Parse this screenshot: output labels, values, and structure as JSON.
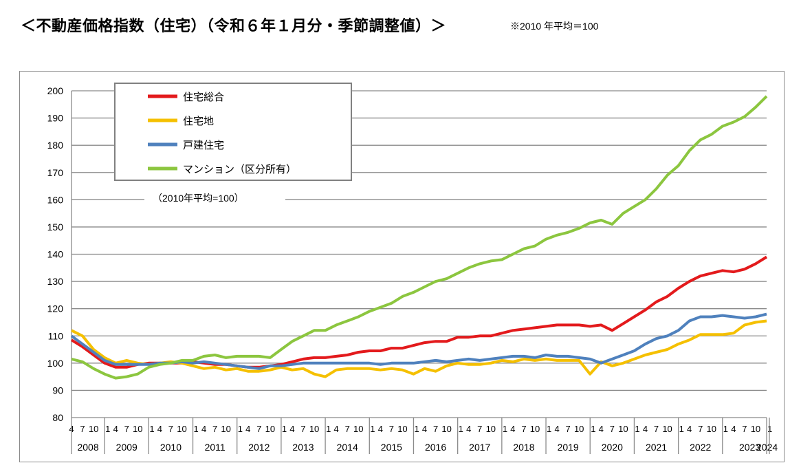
{
  "title": "＜不動産価格指数（住宅）（令和６年１月分・季節調整値）＞",
  "note": "※2010 年平均＝100",
  "chart_data": {
    "type": "line",
    "title": "",
    "xlabel": "",
    "ylabel": "",
    "annotation": "（2010年平均=100）",
    "ylim": [
      80,
      200
    ],
    "yticks": [
      80,
      90,
      100,
      110,
      120,
      130,
      140,
      150,
      160,
      170,
      180,
      190,
      200
    ],
    "grid": true,
    "legend_position": "top-left",
    "x_start": "2008-04",
    "x_end": "2024-01",
    "x_frequency_of_values": "quarterly (Jan/Apr/Jul/Oct)",
    "month_tick_labels": [
      "1",
      "4",
      "7",
      "10"
    ],
    "years": [
      "2008",
      "2009",
      "2010",
      "2011",
      "2012",
      "2013",
      "2014",
      "2015",
      "2016",
      "2017",
      "2018",
      "2019",
      "2020",
      "2021",
      "2022",
      "2023",
      "2024"
    ],
    "series": [
      {
        "name": "住宅総合",
        "color": "#e31a1c",
        "values": [
          108.5,
          106,
          103,
          100,
          98.5,
          98.5,
          99.5,
          100,
          100,
          100,
          100,
          100.5,
          100,
          99.5,
          99.5,
          99,
          98.5,
          98.5,
          99,
          99.5,
          100.5,
          101.5,
          102,
          102,
          102.5,
          103,
          104,
          104.5,
          104.5,
          105.5,
          105.5,
          106.5,
          107.5,
          108,
          108,
          109.5,
          109.5,
          110,
          110,
          111,
          112,
          112.5,
          113,
          113.5,
          114,
          114,
          114,
          113.5,
          114,
          112,
          114.5,
          117,
          119.5,
          122.5,
          124.5,
          127.5,
          130,
          132,
          133,
          134,
          133.5,
          134.5,
          136.5,
          139
        ]
      },
      {
        "name": "住宅地",
        "color": "#f5c000",
        "values": [
          112,
          110,
          105,
          102,
          100,
          101,
          100,
          99.5,
          100,
          100.5,
          100,
          99,
          98,
          98.5,
          97.5,
          98,
          97,
          97,
          97.5,
          98.5,
          97.5,
          98,
          96,
          95,
          97.5,
          98,
          98,
          98,
          97.5,
          98,
          97.5,
          96,
          98,
          97,
          99,
          100,
          99.5,
          99.5,
          100,
          101,
          100.5,
          101.5,
          101,
          101.5,
          101,
          101,
          101,
          96,
          100.5,
          99,
          100,
          101.5,
          103,
          104,
          105,
          107,
          108.5,
          110.5,
          110.5,
          110.5,
          111,
          114,
          115,
          115.5
        ]
      },
      {
        "name": "戸建住宅",
        "color": "#4f81bd",
        "values": [
          110,
          107,
          104,
          101,
          99.5,
          99.5,
          99.5,
          99.5,
          100,
          100,
          100.5,
          100,
          100.5,
          100,
          99.5,
          99,
          98.5,
          98,
          99,
          99,
          99.5,
          100,
          100,
          100,
          100,
          100,
          100,
          100,
          99.5,
          100,
          100,
          100,
          100.5,
          101,
          100.5,
          101,
          101.5,
          101,
          101.5,
          102,
          102.5,
          102.5,
          102,
          103,
          102.5,
          102.5,
          102,
          101.5,
          100,
          101.5,
          103,
          104.5,
          107,
          109,
          110,
          112,
          115.5,
          117,
          117,
          117.5,
          117,
          116.5,
          117,
          118
        ]
      },
      {
        "name": "マンション（区分所有）",
        "color": "#8cc63f",
        "values": [
          101.5,
          100.5,
          98,
          96,
          94.5,
          95,
          96,
          98.5,
          99.5,
          100,
          101,
          101,
          102.5,
          103,
          102,
          102.5,
          102.5,
          102.5,
          102,
          105,
          108,
          110,
          112,
          112,
          114,
          115.5,
          117,
          119,
          120.5,
          122,
          124.5,
          126,
          128,
          130,
          131,
          133,
          135,
          136.5,
          137.5,
          138,
          140,
          142,
          143,
          145.5,
          147,
          148,
          149.5,
          151.5,
          152.5,
          151,
          155,
          157.5,
          160,
          164,
          169,
          172.5,
          178,
          182,
          184,
          187,
          188.5,
          190.5,
          194,
          198
        ]
      }
    ]
  }
}
